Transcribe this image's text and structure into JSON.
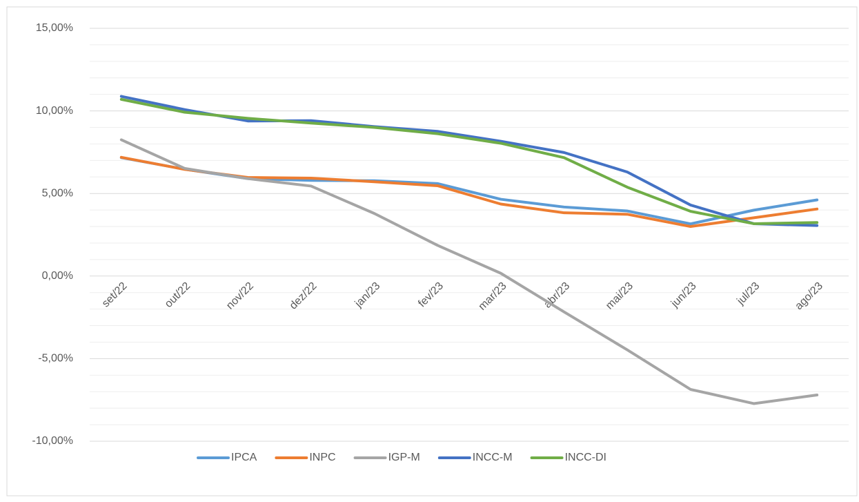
{
  "chart_data": {
    "type": "line",
    "categories": [
      "set/22",
      "out/22",
      "nov/22",
      "dez/22",
      "jan/23",
      "fev/23",
      "mar/23",
      "abr/23",
      "mai/23",
      "jun/23",
      "jul/23",
      "ago/23"
    ],
    "series": [
      {
        "name": "IPCA",
        "color": "#5b9bd5",
        "values": [
          7.17,
          6.47,
          5.9,
          5.79,
          5.77,
          5.6,
          4.65,
          4.18,
          3.94,
          3.16,
          3.99,
          4.61
        ]
      },
      {
        "name": "INPC",
        "color": "#ed7d31",
        "values": [
          7.19,
          6.46,
          5.97,
          5.93,
          5.71,
          5.47,
          4.36,
          3.83,
          3.74,
          3.0,
          3.53,
          4.06
        ]
      },
      {
        "name": "IGP-M",
        "color": "#a5a5a5",
        "values": [
          8.25,
          6.52,
          5.9,
          5.45,
          3.79,
          1.86,
          0.17,
          -2.17,
          -4.47,
          -6.86,
          -7.72,
          -7.2
        ]
      },
      {
        "name": "INCC-M",
        "color": "#4472c4",
        "values": [
          10.88,
          10.08,
          9.39,
          9.41,
          9.05,
          8.76,
          8.16,
          7.48,
          6.3,
          4.3,
          3.17,
          3.06
        ]
      },
      {
        "name": "INCC-DI",
        "color": "#70ad47",
        "values": [
          10.7,
          9.92,
          9.55,
          9.26,
          9.0,
          8.62,
          8.04,
          7.17,
          5.38,
          3.92,
          3.17,
          3.24
        ]
      }
    ],
    "ylim": [
      -10,
      15
    ],
    "yticks": [
      {
        "value": -10,
        "label": "-10,00%"
      },
      {
        "value": -5,
        "label": "-5,00%"
      },
      {
        "value": 0,
        "label": "0,00%"
      },
      {
        "value": 5,
        "label": "5,00%"
      },
      {
        "value": 10,
        "label": "10,00%"
      },
      {
        "value": 15,
        "label": "15,00%"
      }
    ],
    "yticks_minor": [
      -9,
      -8,
      -7,
      -6,
      -4,
      -3,
      -2,
      -1,
      1,
      2,
      3,
      4,
      6,
      7,
      8,
      9,
      11,
      12,
      13,
      14
    ],
    "grid": true,
    "legend": "bottom"
  }
}
